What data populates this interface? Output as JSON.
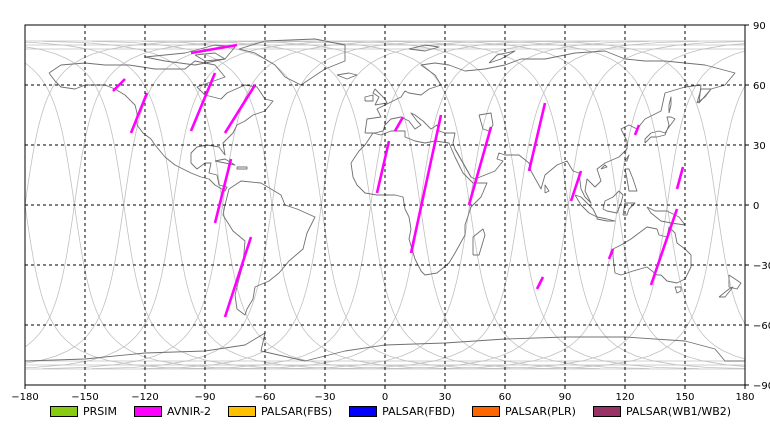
{
  "map": {
    "lon_range": [
      -180,
      180
    ],
    "lat_range": [
      -90,
      90
    ],
    "x_ticks": [
      -180,
      -150,
      -120,
      -90,
      -60,
      -30,
      0,
      30,
      60,
      90,
      120,
      150,
      180
    ],
    "y_ticks": [
      90,
      60,
      30,
      0,
      -30,
      -60,
      -90
    ],
    "grid": "dashed",
    "orbit_color": "#c0c0c0",
    "coast_color": "#707070",
    "segments": [
      {
        "instrument": "AVNIR-2",
        "points": [
          [
            -136,
            57
          ],
          [
            -130,
            63
          ]
        ]
      },
      {
        "instrument": "AVNIR-2",
        "points": [
          [
            -127,
            36
          ],
          [
            -119,
            56
          ]
        ]
      },
      {
        "instrument": "AVNIR-2",
        "points": [
          [
            -97,
            37
          ],
          [
            -85,
            66
          ]
        ]
      },
      {
        "instrument": "AVNIR-2",
        "points": [
          [
            -97,
            76
          ],
          [
            -74,
            80
          ]
        ]
      },
      {
        "instrument": "AVNIR-2",
        "points": [
          [
            -80,
            36
          ],
          [
            -65,
            60
          ]
        ]
      },
      {
        "instrument": "AVNIR-2",
        "points": [
          [
            -85,
            -9
          ],
          [
            -77,
            23
          ]
        ]
      },
      {
        "instrument": "AVNIR-2",
        "points": [
          [
            -80,
            -56
          ],
          [
            -67,
            -16
          ]
        ]
      },
      {
        "instrument": "AVNIR-2",
        "points": [
          [
            -4,
            6
          ],
          [
            2,
            32
          ]
        ]
      },
      {
        "instrument": "AVNIR-2",
        "points": [
          [
            5,
            37
          ],
          [
            9,
            44
          ]
        ]
      },
      {
        "instrument": "AVNIR-2",
        "points": [
          [
            13,
            -24
          ],
          [
            28,
            45
          ]
        ]
      },
      {
        "instrument": "AVNIR-2",
        "points": [
          [
            42,
            0
          ],
          [
            53,
            39
          ]
        ]
      },
      {
        "instrument": "AVNIR-2",
        "points": [
          [
            72,
            17
          ],
          [
            80,
            51
          ]
        ]
      },
      {
        "instrument": "AVNIR-2",
        "points": [
          [
            76,
            -42
          ],
          [
            79,
            -36
          ]
        ]
      },
      {
        "instrument": "AVNIR-2",
        "points": [
          [
            93,
            2
          ],
          [
            98,
            17
          ]
        ]
      },
      {
        "instrument": "AVNIR-2",
        "points": [
          [
            112,
            -27
          ],
          [
            114,
            -22
          ]
        ]
      },
      {
        "instrument": "AVNIR-2",
        "points": [
          [
            125,
            35
          ],
          [
            127,
            40
          ]
        ]
      },
      {
        "instrument": "AVNIR-2",
        "points": [
          [
            133,
            -40
          ],
          [
            146,
            -2
          ]
        ]
      },
      {
        "instrument": "AVNIR-2",
        "points": [
          [
            146,
            8
          ],
          [
            149,
            19
          ]
        ]
      }
    ]
  },
  "legend": [
    {
      "label": "PRSIM",
      "color": "#88cc11"
    },
    {
      "label": "AVNIR-2",
      "color": "#ff00ff"
    },
    {
      "label": "PALSAR(FBS)",
      "color": "#ffc000"
    },
    {
      "label": "PALSAR(FBD)",
      "color": "#0000ff"
    },
    {
      "label": "PALSAR(PLR)",
      "color": "#ff6600"
    },
    {
      "label": "PALSAR(WB1/WB2)",
      "color": "#993366"
    }
  ]
}
